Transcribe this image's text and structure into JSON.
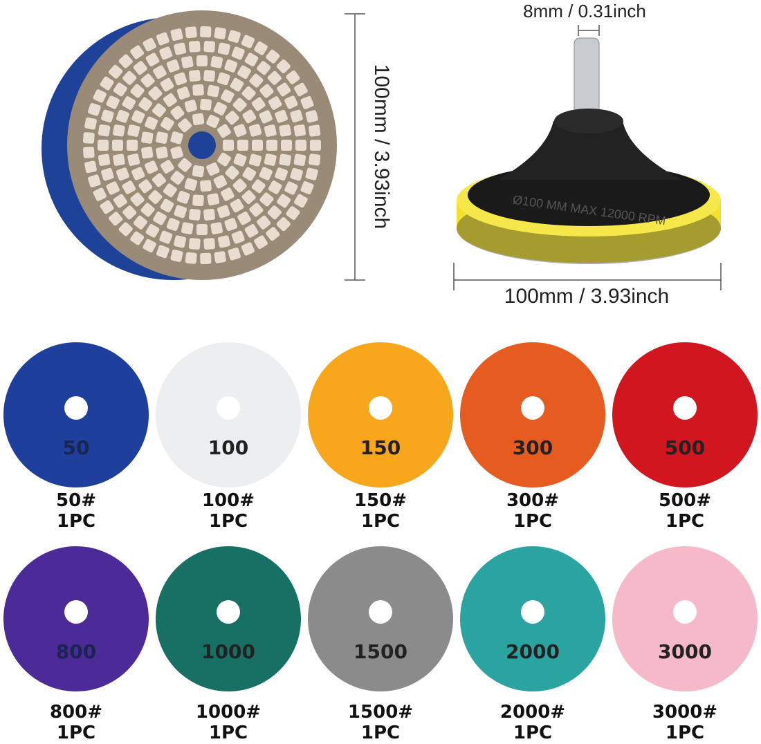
{
  "dimensions": {
    "shank": "8mm / 0.31inch",
    "disc_diameter": "100mm / 3.93inch",
    "pad_diameter": "100mm / 3.93inch",
    "pad_marking": "Ø100 MM   MAX   12000 RPM"
  },
  "discs": [
    {
      "mark": "50",
      "grit": "50#",
      "quantity": "1PC",
      "color": "#1f3f9c"
    },
    {
      "mark": "100",
      "grit": "100#",
      "quantity": "1PC",
      "color": "#eceef0"
    },
    {
      "mark": "150",
      "grit": "150#",
      "quantity": "1PC",
      "color": "#f8a71d"
    },
    {
      "mark": "300",
      "grit": "300#",
      "quantity": "1PC",
      "color": "#e65b1f"
    },
    {
      "mark": "500",
      "grit": "500#",
      "quantity": "1PC",
      "color": "#d2161f"
    },
    {
      "mark": "800",
      "grit": "800#",
      "quantity": "1PC",
      "color": "#4c2b99"
    },
    {
      "mark": "1000",
      "grit": "1000#",
      "quantity": "1PC",
      "color": "#177063"
    },
    {
      "mark": "1500",
      "grit": "1500#",
      "quantity": "1PC",
      "color": "#8b8b8b"
    },
    {
      "mark": "2000",
      "grit": "2000#",
      "quantity": "1PC",
      "color": "#2ba4a1"
    },
    {
      "mark": "3000",
      "grit": "3000#",
      "quantity": "1PC",
      "color": "#f5b9c9"
    }
  ]
}
